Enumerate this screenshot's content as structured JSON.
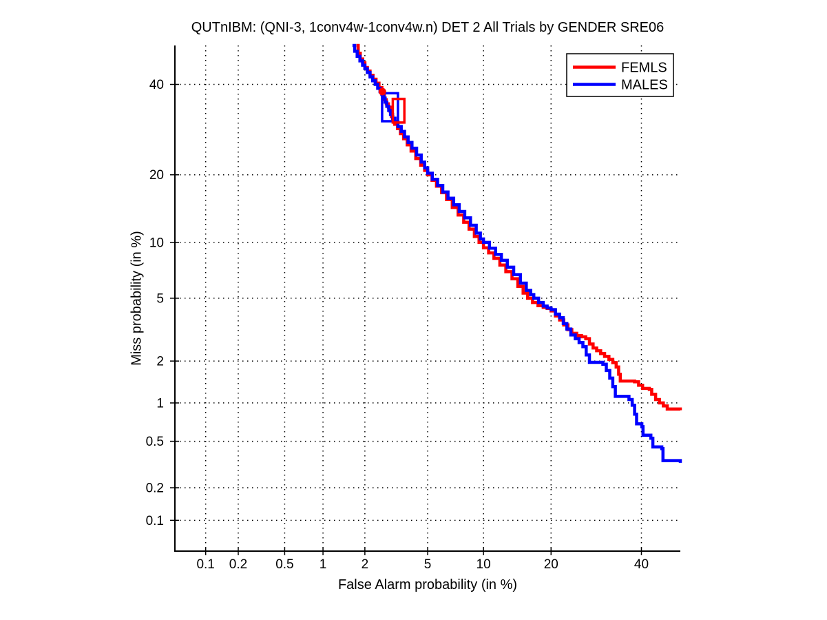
{
  "title": "QUTnIBM: (QNI-3, 1conv4w-1conv4w.n) DET 2 All Trials by GENDER SRE06",
  "background_color": "#ffffff",
  "chart_data": {
    "type": "line",
    "variant": "DET-curve",
    "title": "QUTnIBM: (QNI-3, 1conv4w-1conv4w.n) DET 2 All Trials by GENDER SRE06",
    "xlabel": "False Alarm probability (in %)",
    "ylabel": "Miss probability (in %)",
    "x_scale": "probit",
    "y_scale": "probit",
    "xlim_percent": [
      0.05,
      50
    ],
    "ylim_percent": [
      0.05,
      50
    ],
    "xticks_percent": [
      0.1,
      0.2,
      0.5,
      1,
      2,
      5,
      10,
      20,
      40
    ],
    "yticks_percent": [
      0.1,
      0.2,
      0.5,
      1,
      2,
      5,
      10,
      20,
      40
    ],
    "grid": {
      "style": "dotted",
      "color": "#000000"
    },
    "axis_color": "#000000",
    "legend": {
      "position": "top-right",
      "entries": [
        {
          "label": "FEMLS",
          "color": "#ff0000"
        },
        {
          "label": "MALES",
          "color": "#0000ff"
        }
      ]
    },
    "series": [
      {
        "name": "FEMLS",
        "color": "#ff0000",
        "line_width": 4.5,
        "points_fa_miss_percent": [
          [
            1.75,
            50
          ],
          [
            1.8,
            48
          ],
          [
            1.86,
            46.5
          ],
          [
            1.93,
            45.5
          ],
          [
            2.0,
            44.3
          ],
          [
            2.08,
            43.4
          ],
          [
            2.17,
            42.3
          ],
          [
            2.27,
            41.3
          ],
          [
            2.38,
            40.3
          ],
          [
            2.49,
            39.2
          ],
          [
            2.6,
            38.2
          ],
          [
            2.64,
            37.2
          ],
          [
            2.7,
            36.2
          ],
          [
            2.78,
            35.2
          ],
          [
            2.87,
            34.4
          ],
          [
            2.95,
            33.4
          ],
          [
            3.0,
            32.2
          ],
          [
            3.06,
            31.2
          ],
          [
            3.15,
            30.4
          ],
          [
            3.28,
            29.4
          ],
          [
            3.42,
            28.3
          ],
          [
            3.58,
            27.2
          ],
          [
            3.77,
            25.9
          ],
          [
            3.98,
            24.6
          ],
          [
            4.25,
            23.1
          ],
          [
            4.55,
            21.8
          ],
          [
            4.8,
            20.8
          ],
          [
            5.0,
            20.0
          ],
          [
            5.3,
            19.0
          ],
          [
            5.62,
            18.0
          ],
          [
            6.0,
            16.9
          ],
          [
            6.4,
            15.8
          ],
          [
            6.88,
            14.6
          ],
          [
            7.4,
            13.5
          ],
          [
            7.92,
            12.5
          ],
          [
            8.45,
            11.6
          ],
          [
            9.0,
            10.7
          ],
          [
            9.5,
            10.0
          ],
          [
            10.0,
            9.4
          ],
          [
            10.6,
            8.85
          ],
          [
            11.25,
            8.3
          ],
          [
            12.0,
            7.65
          ],
          [
            12.8,
            7.05
          ],
          [
            13.65,
            6.45
          ],
          [
            14.5,
            5.85
          ],
          [
            15.3,
            5.35
          ],
          [
            16.0,
            5.0
          ],
          [
            16.8,
            4.72
          ],
          [
            17.7,
            4.52
          ],
          [
            18.6,
            4.42
          ],
          [
            19.3,
            4.35
          ],
          [
            20.0,
            4.2
          ],
          [
            20.8,
            3.92
          ],
          [
            21.6,
            3.7
          ],
          [
            22.4,
            3.45
          ],
          [
            23.2,
            3.22
          ],
          [
            24.0,
            3.05
          ],
          [
            25.0,
            2.95
          ],
          [
            26.0,
            2.9
          ],
          [
            26.9,
            2.82
          ],
          [
            27.7,
            2.6
          ],
          [
            28.5,
            2.45
          ],
          [
            29.3,
            2.35
          ],
          [
            30.2,
            2.25
          ],
          [
            31.1,
            2.15
          ],
          [
            32.1,
            2.05
          ],
          [
            33.0,
            1.95
          ],
          [
            33.8,
            1.82
          ],
          [
            34.4,
            1.62
          ],
          [
            34.8,
            1.45
          ],
          [
            38.3,
            1.43
          ],
          [
            39.3,
            1.35
          ],
          [
            40.3,
            1.28
          ],
          [
            42.0,
            1.26
          ],
          [
            42.6,
            1.16
          ],
          [
            43.6,
            1.06
          ],
          [
            44.6,
            1.0
          ],
          [
            45.6,
            0.95
          ],
          [
            46.6,
            0.9
          ],
          [
            50.0,
            0.88
          ]
        ]
      },
      {
        "name": "MALES",
        "color": "#0000ff",
        "line_width": 4.5,
        "points_fa_miss_percent": [
          [
            1.64,
            50
          ],
          [
            1.7,
            48.5
          ],
          [
            1.77,
            47.2
          ],
          [
            1.85,
            46.0
          ],
          [
            1.93,
            44.9
          ],
          [
            2.0,
            44.0
          ],
          [
            2.08,
            43.0
          ],
          [
            2.17,
            41.9
          ],
          [
            2.26,
            40.9
          ],
          [
            2.35,
            40.0
          ],
          [
            2.44,
            39.0
          ],
          [
            2.53,
            38.2
          ],
          [
            2.6,
            37.5
          ],
          [
            2.67,
            36.6
          ],
          [
            2.73,
            35.6
          ],
          [
            2.8,
            34.6
          ],
          [
            2.88,
            33.6
          ],
          [
            2.96,
            32.7
          ],
          [
            3.05,
            31.8
          ],
          [
            3.16,
            30.9
          ],
          [
            3.3,
            29.9
          ],
          [
            3.46,
            28.8
          ],
          [
            3.63,
            27.6
          ],
          [
            3.82,
            26.4
          ],
          [
            4.03,
            25.2
          ],
          [
            4.3,
            23.8
          ],
          [
            4.58,
            22.4
          ],
          [
            4.8,
            21.3
          ],
          [
            5.0,
            20.3
          ],
          [
            5.32,
            19.2
          ],
          [
            5.7,
            18.1
          ],
          [
            6.1,
            17.0
          ],
          [
            6.52,
            16.0
          ],
          [
            7.0,
            15.0
          ],
          [
            7.5,
            14.0
          ],
          [
            8.02,
            13.1
          ],
          [
            8.6,
            12.1
          ],
          [
            9.2,
            11.1
          ],
          [
            9.65,
            10.4
          ],
          [
            10.0,
            10.0
          ],
          [
            10.7,
            9.35
          ],
          [
            11.45,
            8.7
          ],
          [
            12.2,
            8.1
          ],
          [
            13.0,
            7.45
          ],
          [
            13.9,
            6.8
          ],
          [
            14.9,
            6.1
          ],
          [
            15.8,
            5.55
          ],
          [
            16.5,
            5.25
          ],
          [
            17.0,
            5.0
          ],
          [
            17.8,
            4.72
          ],
          [
            18.6,
            4.5
          ],
          [
            19.3,
            4.38
          ],
          [
            20.0,
            4.28
          ],
          [
            20.8,
            4.02
          ],
          [
            21.6,
            3.82
          ],
          [
            22.3,
            3.52
          ],
          [
            23.0,
            3.25
          ],
          [
            23.8,
            2.98
          ],
          [
            24.7,
            2.82
          ],
          [
            25.5,
            2.66
          ],
          [
            26.3,
            2.5
          ],
          [
            27.0,
            2.2
          ],
          [
            27.7,
            1.96
          ],
          [
            30.7,
            1.9
          ],
          [
            31.5,
            1.72
          ],
          [
            32.3,
            1.52
          ],
          [
            33.0,
            1.32
          ],
          [
            33.6,
            1.12
          ],
          [
            36.9,
            1.06
          ],
          [
            37.7,
            0.96
          ],
          [
            38.3,
            0.82
          ],
          [
            38.8,
            0.69
          ],
          [
            40.1,
            0.655
          ],
          [
            40.4,
            0.56
          ],
          [
            42.4,
            0.53
          ],
          [
            42.9,
            0.45
          ],
          [
            45.2,
            0.435
          ],
          [
            45.5,
            0.345
          ],
          [
            50.0,
            0.33
          ]
        ]
      }
    ],
    "markers": [
      {
        "shape": "rect",
        "series": "MALES",
        "color": "#0000ff",
        "filled": false,
        "fa_range_percent": [
          2.61,
          3.3
        ],
        "miss_range_percent": [
          31.1,
          37.8
        ]
      },
      {
        "shape": "rect",
        "series": "FEMLS",
        "color": "#ff0000",
        "filled": false,
        "fa_range_percent": [
          3.06,
          3.62
        ],
        "miss_range_percent": [
          30.8,
          36.4
        ]
      },
      {
        "shape": "circle",
        "series": "FEMLS",
        "color": "#ff0000",
        "filled": true,
        "fa_percent": 2.62,
        "miss_percent": 38.2
      }
    ]
  }
}
